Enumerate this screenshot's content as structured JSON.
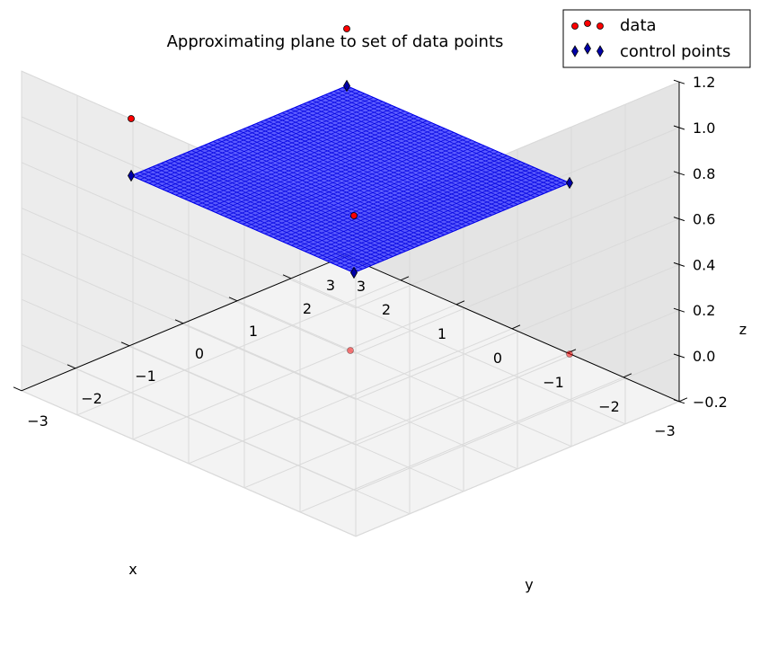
{
  "chart_data": {
    "type": "scatter",
    "subtype": "3d-surface-with-scatter",
    "title": "Approximating plane to set of data points",
    "xlabel": "x",
    "ylabel": "y",
    "zlabel": "z",
    "xlim": [
      -3,
      3
    ],
    "ylim": [
      -3,
      3
    ],
    "zlim": [
      -0.2,
      1.2
    ],
    "x_ticks": [
      "3",
      "2",
      "1",
      "0",
      "−1",
      "−2",
      "−3"
    ],
    "y_ticks": [
      "−3",
      "−2",
      "−1",
      "0",
      "1",
      "2",
      "3"
    ],
    "z_ticks": [
      "1.2",
      "1.0",
      "0.8",
      "0.6",
      "0.4",
      "0.2",
      "0.0",
      "−0.2"
    ],
    "grid": true,
    "legend_position": "top-right",
    "series": [
      {
        "name": "data",
        "marker": "circle",
        "color": "#ff0000",
        "points": [
          {
            "x": 2,
            "y": -2,
            "z": 1
          },
          {
            "x": -2,
            "y": -2,
            "z": 1
          },
          {
            "x": 2,
            "y": 2,
            "z": 1
          },
          {
            "x": -2,
            "y": 2,
            "z": 0
          },
          {
            "x": 0,
            "y": 0,
            "z": 0
          }
        ]
      },
      {
        "name": "control points",
        "marker": "diamond",
        "color": "#0000aa",
        "points": [
          {
            "x": -2,
            "y": -2,
            "z": 0.75
          },
          {
            "x": -2,
            "y": 2,
            "z": 0.75
          },
          {
            "x": 2,
            "y": -2,
            "z": 0.75
          },
          {
            "x": 2,
            "y": 2,
            "z": 0.75
          }
        ]
      }
    ],
    "surface": {
      "x_range": [
        -2,
        2
      ],
      "y_range": [
        -2,
        2
      ],
      "z": 0.75,
      "color": "#0000ff"
    }
  }
}
